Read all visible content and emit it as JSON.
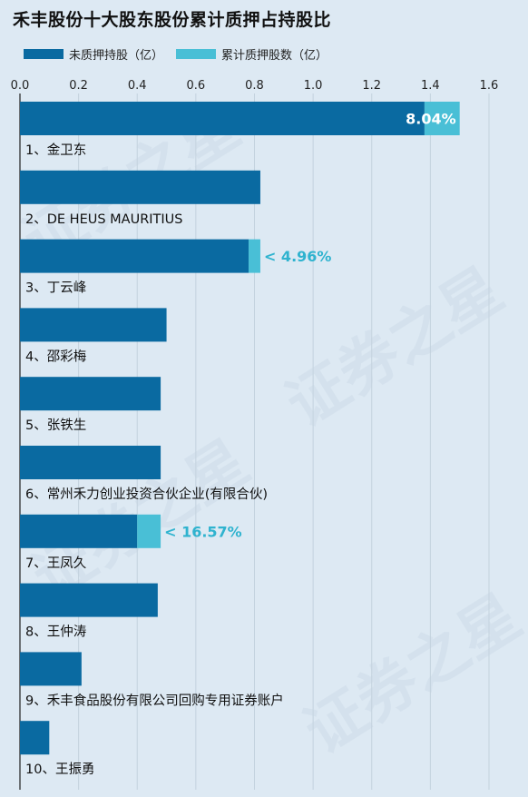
{
  "title": "禾丰股份十大股东股份累计质押占持股比",
  "watermark": "证券之星",
  "legend": [
    {
      "label": "未质押持股（亿）",
      "color": "#0a6aa1"
    },
    {
      "label": "累计质押股数（亿）",
      "color": "#49bfd6"
    }
  ],
  "chart_data": {
    "type": "bar",
    "orientation": "horizontal",
    "stacked": true,
    "xlim": [
      0,
      1.6
    ],
    "xticks": [
      "0.0",
      "0.2",
      "0.4",
      "0.6",
      "0.8",
      "1.0",
      "1.2",
      "1.4",
      "1.6"
    ],
    "grid": true,
    "categories": [
      "1、金卫东",
      "2、DE HEUS MAURITIUS",
      "3、丁云峰",
      "4、邵彩梅",
      "5、张铁生",
      "6、常州禾力创业投资合伙企业(有限合伙)",
      "7、王凤久",
      "8、王仲涛",
      "9、禾丰食品股份有限公司回购专用证券账户",
      "10、王振勇"
    ],
    "series": [
      {
        "name": "未质押持股（亿）",
        "color": "#0a6aa1",
        "values": [
          1.38,
          0.82,
          0.78,
          0.5,
          0.48,
          0.48,
          0.4,
          0.47,
          0.21,
          0.1
        ]
      },
      {
        "name": "累计质押股数（亿）",
        "color": "#49bfd6",
        "values": [
          0.12,
          0.0,
          0.04,
          0.0,
          0.0,
          0.0,
          0.08,
          0.0,
          0.0,
          0.0
        ]
      }
    ],
    "annotations": [
      "8.04%",
      "",
      "4.96%",
      "",
      "",
      "",
      "16.57%",
      "",
      "",
      ""
    ]
  }
}
